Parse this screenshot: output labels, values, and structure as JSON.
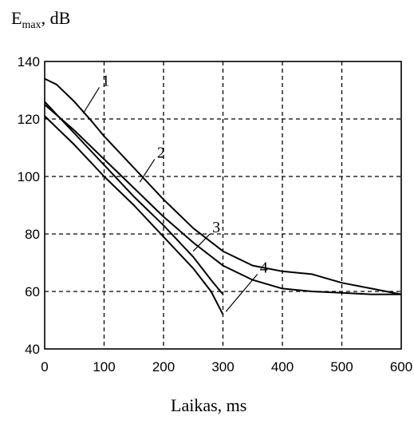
{
  "chart_data": {
    "type": "line",
    "ylabel": {
      "main": "E",
      "sub": "max",
      "suffix": ", dB"
    },
    "xlabel": "Laikas, ms",
    "xlim": [
      0,
      600
    ],
    "ylim": [
      40,
      140
    ],
    "xticks": [
      0,
      100,
      200,
      300,
      400,
      500,
      600
    ],
    "yticks": [
      40,
      60,
      80,
      100,
      120,
      140
    ],
    "grid": true,
    "series": [
      {
        "name": "1",
        "x": [
          0,
          20,
          50,
          80,
          100,
          150,
          200,
          250,
          300,
          350,
          400,
          450,
          500,
          550,
          600
        ],
        "y": [
          134,
          132,
          126,
          119,
          114,
          103,
          92,
          82,
          74,
          69,
          67,
          66,
          63,
          61,
          59
        ]
      },
      {
        "name": "2",
        "x": [
          0,
          50,
          100,
          150,
          200,
          250,
          300,
          350,
          400,
          450,
          500,
          550,
          600
        ],
        "y": [
          125,
          116,
          106,
          96,
          86,
          77,
          69,
          64,
          61,
          60,
          59.5,
          59,
          59
        ]
      },
      {
        "name": "3",
        "x": [
          0,
          50,
          100,
          150,
          200,
          250,
          280,
          300
        ],
        "y": [
          126,
          115,
          104,
          93,
          83,
          72,
          64,
          59
        ]
      },
      {
        "name": "4",
        "x": [
          0,
          50,
          100,
          150,
          200,
          250,
          280,
          300
        ],
        "y": [
          121,
          111,
          100,
          90,
          79,
          68,
          60,
          52
        ]
      }
    ],
    "annotations": [
      {
        "text": "1",
        "x": 65,
        "y": 122,
        "tx": 92,
        "ty": 131
      },
      {
        "text": "2",
        "x": 160,
        "y": 98,
        "tx": 185,
        "ty": 106
      },
      {
        "text": "3",
        "x": 250,
        "y": 74,
        "tx": 278,
        "ty": 80
      },
      {
        "text": "4",
        "x": 305,
        "y": 53,
        "tx": 358,
        "ty": 66
      }
    ]
  }
}
